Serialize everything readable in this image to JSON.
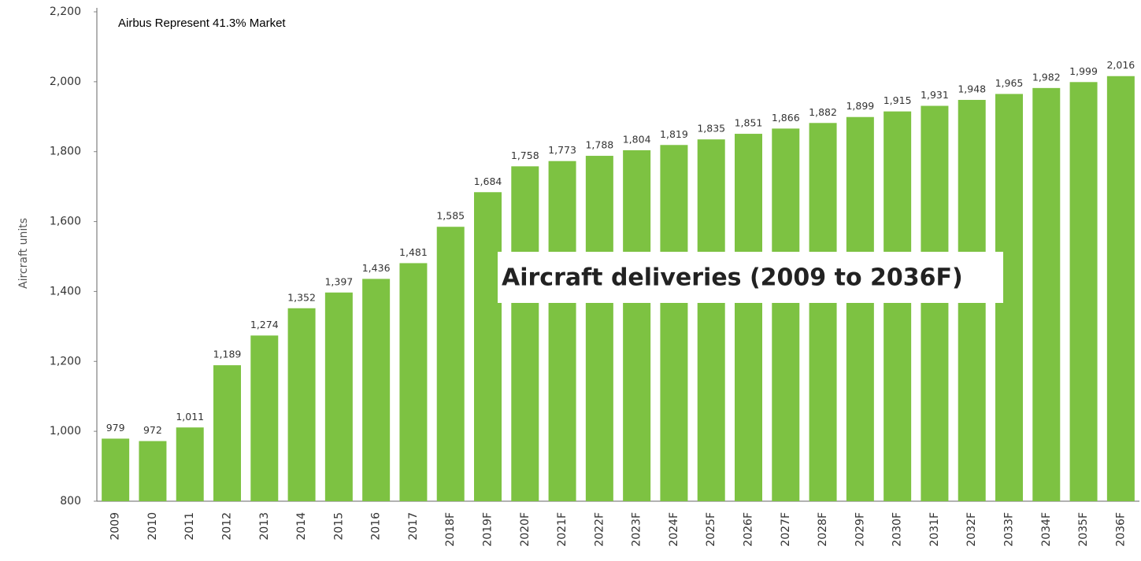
{
  "chart_data": {
    "type": "bar",
    "title": "Aircraft deliveries (2009 to 2036F)",
    "subtitle": "Airbus Represent 41.3% Market",
    "y_label": "Aircraft units",
    "categories": [
      "2009",
      "2010",
      "2011",
      "2012",
      "2013",
      "2014",
      "2015",
      "2016",
      "2017",
      "2018F",
      "2019F",
      "2020F",
      "2021F",
      "2022F",
      "2023F",
      "2024F",
      "2025F",
      "2026F",
      "2027F",
      "2028F",
      "2029F",
      "2030F",
      "2031F",
      "2032F",
      "2033F",
      "2034F",
      "2035F",
      "2036F"
    ],
    "values": [
      979,
      972,
      1011,
      1189,
      1274,
      1352,
      1397,
      1436,
      1481,
      1585,
      1684,
      1758,
      1773,
      1788,
      1804,
      1819,
      1835,
      1851,
      1866,
      1882,
      1899,
      1915,
      1931,
      1948,
      1965,
      1982,
      1999,
      2016
    ],
    "value_labels": [
      "979",
      "972",
      "1,011",
      "1,189",
      "1,274",
      "1,352",
      "1,397",
      "1,436",
      "1,481",
      "1,585",
      "1,684",
      "1,758",
      "1,773",
      "1,788",
      "1,804",
      "1,819",
      "1,835",
      "1,851",
      "1,866",
      "1,882",
      "1,899",
      "1,915",
      "1,931",
      "1,948",
      "1,965",
      "1,982",
      "1,999",
      "2,016"
    ],
    "color": "#7dc242",
    "ylim": [
      800,
      2200
    ],
    "yticks": [
      {
        "value": 800,
        "label": "800"
      },
      {
        "value": 1000,
        "label": "1,000"
      },
      {
        "value": 1200,
        "label": "1,200"
      },
      {
        "value": 1400,
        "label": "1,400"
      },
      {
        "value": 1600,
        "label": "1,600"
      },
      {
        "value": 1800,
        "label": "1,800"
      },
      {
        "value": 2000,
        "label": "2,000"
      },
      {
        "value": 2200,
        "label": "2,200"
      }
    ],
    "grid": false
  }
}
